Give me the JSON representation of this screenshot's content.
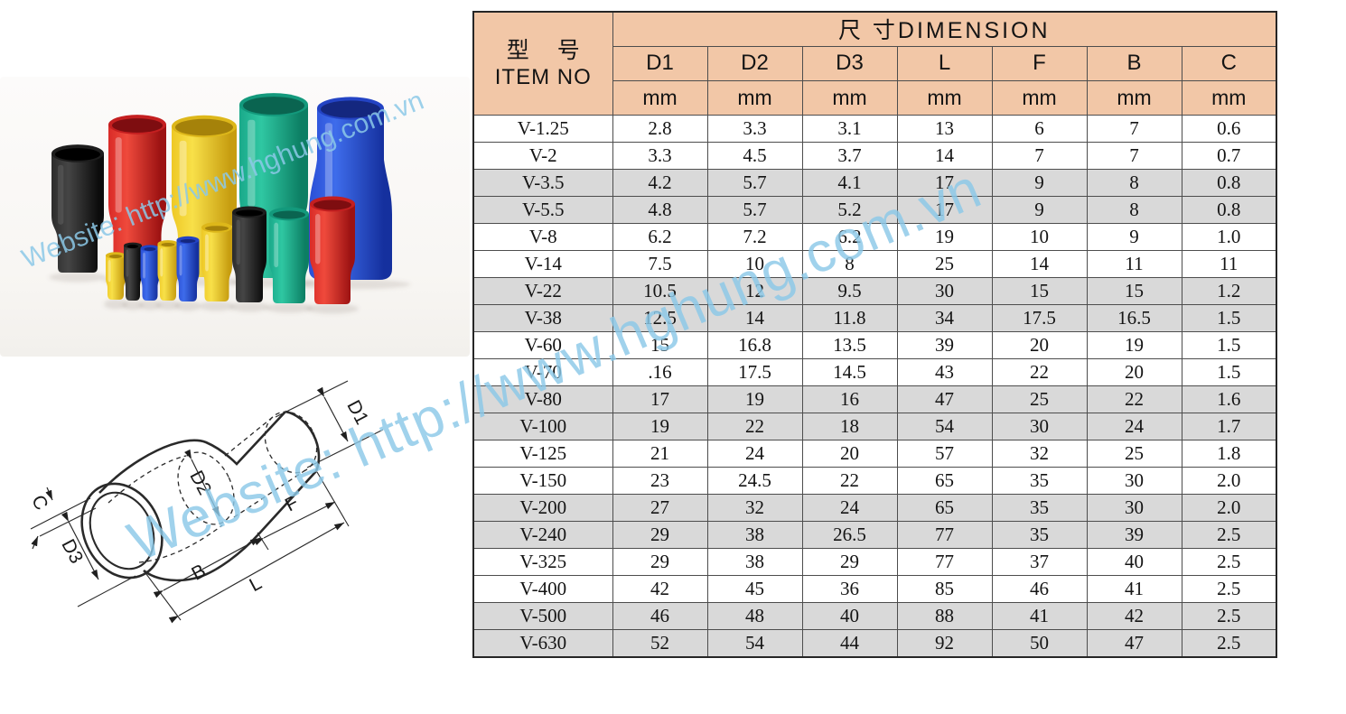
{
  "watermarks": {
    "main": "Website: http://www.hghung.com.vn",
    "photo": "Website: http://www.hghung.com.vn"
  },
  "photo": {
    "back_row_colors": [
      "black",
      "red",
      "yellow",
      "green",
      "blue"
    ],
    "front_row_colors": [
      "yellow",
      "black",
      "blue",
      "yellow",
      "blue",
      "yellow",
      "black",
      "green",
      "red"
    ]
  },
  "diagram": {
    "labels": {
      "c": "C",
      "d3": "D3",
      "d2": "D2",
      "d1": "D1",
      "b": "B",
      "l": "L",
      "f": "F"
    }
  },
  "colors": {
    "header_bg": "#f2c7a7",
    "shaded_row": "#d9d9d9",
    "watermark": "#8cc9e8"
  },
  "table": {
    "item_header_cn": "型  号",
    "item_header_en": "ITEM NO",
    "dimension_header": "尺 寸DIMENSION",
    "columns": [
      "D1",
      "D2",
      "D3",
      "L",
      "F",
      "B",
      "C"
    ],
    "unit": "mm",
    "rows": [
      {
        "item": "V-1.25",
        "values": [
          "2.8",
          "3.3",
          "3.1",
          "13",
          "6",
          "7",
          "0.6"
        ]
      },
      {
        "item": "V-2",
        "values": [
          "3.3",
          "4.5",
          "3.7",
          "14",
          "7",
          "7",
          "0.7"
        ]
      },
      {
        "item": "V-3.5",
        "values": [
          "4.2",
          "5.7",
          "4.1",
          "17",
          "9",
          "8",
          "0.8"
        ]
      },
      {
        "item": "V-5.5",
        "values": [
          "4.8",
          "5.7",
          "5.2",
          "17",
          "9",
          "8",
          "0.8"
        ]
      },
      {
        "item": "V-8",
        "values": [
          "6.2",
          "7.2",
          "6.2",
          "19",
          "10",
          "9",
          "1.0"
        ]
      },
      {
        "item": "V-14",
        "values": [
          "7.5",
          "10",
          "8",
          "25",
          "14",
          "11",
          "11"
        ]
      },
      {
        "item": "V-22",
        "values": [
          "10.5",
          "12",
          "9.5",
          "30",
          "15",
          "15",
          "1.2"
        ]
      },
      {
        "item": "V-38",
        "values": [
          "12.5",
          "14",
          "11.8",
          "34",
          "17.5",
          "16.5",
          "1.5"
        ]
      },
      {
        "item": "V-60",
        "values": [
          "15",
          "16.8",
          "13.5",
          "39",
          "20",
          "19",
          "1.5"
        ]
      },
      {
        "item": "V-70",
        "values": [
          ".16",
          "17.5",
          "14.5",
          "43",
          "22",
          "20",
          "1.5"
        ]
      },
      {
        "item": "V-80",
        "values": [
          "17",
          "19",
          "16",
          "47",
          "25",
          "22",
          "1.6"
        ]
      },
      {
        "item": "V-100",
        "values": [
          "19",
          "22",
          "18",
          "54",
          "30",
          "24",
          "1.7"
        ]
      },
      {
        "item": "V-125",
        "values": [
          "21",
          "24",
          "20",
          "57",
          "32",
          "25",
          "1.8"
        ]
      },
      {
        "item": "V-150",
        "values": [
          "23",
          "24.5",
          "22",
          "65",
          "35",
          "30",
          "2.0"
        ]
      },
      {
        "item": "V-200",
        "values": [
          "27",
          "32",
          "24",
          "65",
          "35",
          "30",
          "2.0"
        ]
      },
      {
        "item": "V-240",
        "values": [
          "29",
          "38",
          "26.5",
          "77",
          "35",
          "39",
          "2.5"
        ]
      },
      {
        "item": "V-325",
        "values": [
          "29",
          "38",
          "29",
          "77",
          "37",
          "40",
          "2.5"
        ]
      },
      {
        "item": "V-400",
        "values": [
          "42",
          "45",
          "36",
          "85",
          "46",
          "41",
          "2.5"
        ]
      },
      {
        "item": "V-500",
        "values": [
          "46",
          "48",
          "40",
          "88",
          "41",
          "42",
          "2.5"
        ]
      },
      {
        "item": "V-630",
        "values": [
          "52",
          "54",
          "44",
          "92",
          "50",
          "47",
          "2.5"
        ]
      }
    ]
  }
}
